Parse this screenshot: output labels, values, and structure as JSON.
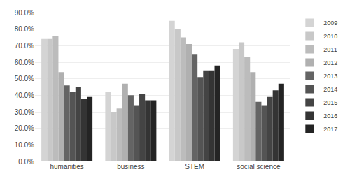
{
  "chart_data": {
    "type": "bar",
    "categories": [
      "humanities",
      "business",
      "STEM",
      "social science"
    ],
    "series": [
      {
        "name": "2009",
        "color": "#d4d4d4",
        "values": [
          0.74,
          0.42,
          0.85,
          0.68
        ]
      },
      {
        "name": "2010",
        "color": "#c8c8c8",
        "values": [
          0.74,
          0.3,
          0.8,
          0.72
        ]
      },
      {
        "name": "2011",
        "color": "#bcbcbc",
        "values": [
          0.76,
          0.32,
          0.75,
          0.63
        ]
      },
      {
        "name": "2012",
        "color": "#b0b0b0",
        "values": [
          0.54,
          0.47,
          0.71,
          0.54
        ]
      },
      {
        "name": "2013",
        "color": "#646464",
        "values": [
          0.46,
          0.4,
          0.65,
          0.36
        ]
      },
      {
        "name": "2014",
        "color": "#545454",
        "values": [
          0.42,
          0.34,
          0.51,
          0.34
        ]
      },
      {
        "name": "2015",
        "color": "#444444",
        "values": [
          0.45,
          0.41,
          0.55,
          0.39
        ]
      },
      {
        "name": "2016",
        "color": "#343434",
        "values": [
          0.38,
          0.37,
          0.55,
          0.43
        ]
      },
      {
        "name": "2017",
        "color": "#242424",
        "values": [
          0.39,
          0.37,
          0.58,
          0.47
        ]
      }
    ],
    "ylim": [
      0.0,
      0.9
    ],
    "yticks": [
      {
        "value": 0.0,
        "label": "0.0%"
      },
      {
        "value": 0.1,
        "label": "10.0%"
      },
      {
        "value": 0.2,
        "label": "20.0%"
      },
      {
        "value": 0.3,
        "label": "30.0%"
      },
      {
        "value": 0.4,
        "label": "40.0%"
      },
      {
        "value": 0.5,
        "label": "50.0%"
      },
      {
        "value": 0.6,
        "label": "60.0%"
      },
      {
        "value": 0.7,
        "label": "70.0%"
      },
      {
        "value": 0.8,
        "label": "80.0%"
      },
      {
        "value": 0.9,
        "label": "90.0%"
      }
    ],
    "grid": true,
    "legend": "right"
  }
}
